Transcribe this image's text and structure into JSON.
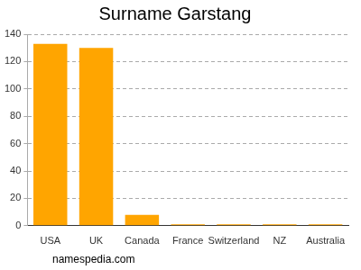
{
  "chart_data": {
    "type": "bar",
    "title": "Surname Garstang",
    "categories": [
      "USA",
      "UK",
      "Canada",
      "France",
      "Switzerland",
      "NZ",
      "Australia"
    ],
    "values": [
      133,
      130,
      8,
      1,
      1,
      1,
      1
    ],
    "color": "#ffa500",
    "ylim": [
      0,
      140
    ],
    "yticks": [
      0,
      20,
      40,
      60,
      80,
      100,
      120,
      140
    ],
    "grid": true,
    "annotation": "namespedia.com"
  }
}
